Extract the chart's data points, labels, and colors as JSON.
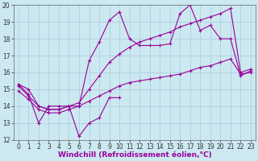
{
  "background_color": "#cce8f0",
  "grid_color": "#aaccdd",
  "line_color": "#990099",
  "xlabel": "Windchill (Refroidissement éolien,°C)",
  "xlabel_fontsize": 6.5,
  "tick_fontsize": 5.5,
  "xlim": [
    -0.5,
    23.5
  ],
  "ylim": [
    12,
    20
  ],
  "xtick_vals": [
    0,
    1,
    2,
    3,
    4,
    5,
    6,
    7,
    8,
    9,
    10,
    11,
    12,
    13,
    14,
    15,
    16,
    17,
    18,
    19,
    20,
    21,
    22,
    23
  ],
  "ytick_vals": [
    12,
    13,
    14,
    15,
    16,
    17,
    18,
    19,
    20
  ],
  "curve1_x": [
    0,
    1,
    2,
    3,
    4,
    5,
    6,
    7,
    8,
    9,
    10
  ],
  "curve1_y": [
    15.3,
    14.7,
    13.0,
    14.0,
    14.0,
    14.0,
    12.2,
    13.0,
    13.3,
    14.5,
    14.5
  ],
  "curve2_x": [
    0,
    1,
    2,
    3,
    4,
    5,
    6,
    7,
    8,
    9,
    10,
    11,
    12,
    13,
    14,
    15,
    16,
    17,
    18,
    19,
    20,
    21,
    22,
    23
  ],
  "curve2_y": [
    15.3,
    15.0,
    14.0,
    13.8,
    13.8,
    14.0,
    14.0,
    16.7,
    17.8,
    19.1,
    19.6,
    18.0,
    17.6,
    17.6,
    17.6,
    17.7,
    19.5,
    20.0,
    18.5,
    18.8,
    18.0,
    18.0,
    15.8,
    16.1
  ],
  "curve3_x": [
    0,
    1,
    2,
    3,
    4,
    5,
    6,
    7,
    8,
    9,
    10,
    11,
    12,
    13,
    14,
    15,
    16,
    17,
    18,
    19,
    20,
    21,
    22,
    23
  ],
  "curve3_y": [
    15.2,
    14.6,
    14.0,
    13.8,
    13.8,
    14.0,
    14.2,
    15.0,
    15.8,
    16.6,
    17.1,
    17.5,
    17.8,
    18.0,
    18.2,
    18.4,
    18.7,
    18.9,
    19.1,
    19.3,
    19.5,
    19.8,
    16.0,
    16.2
  ],
  "curve4_x": [
    0,
    1,
    2,
    3,
    4,
    5,
    6,
    7,
    8,
    9,
    10,
    11,
    12,
    13,
    14,
    15,
    16,
    17,
    18,
    19,
    20,
    21,
    22,
    23
  ],
  "curve4_y": [
    14.9,
    14.4,
    13.8,
    13.6,
    13.6,
    13.8,
    14.0,
    14.3,
    14.6,
    14.9,
    15.2,
    15.4,
    15.5,
    15.6,
    15.7,
    15.8,
    15.9,
    16.1,
    16.3,
    16.4,
    16.6,
    16.8,
    15.9,
    16.0
  ]
}
